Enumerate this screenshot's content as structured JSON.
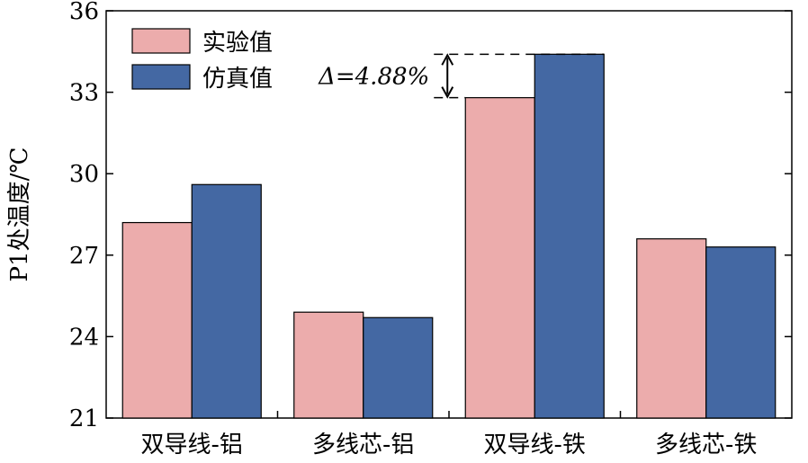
{
  "chart_data": {
    "type": "bar",
    "ylabel": "P1处温度/℃",
    "xlabel": "",
    "categories": [
      "双导线-铝",
      "多线芯-铝",
      "双导线-铁",
      "多线芯-铁"
    ],
    "series": [
      {
        "name": "实验值",
        "values": [
          28.2,
          24.9,
          32.8,
          27.6
        ],
        "color": "#ecacac"
      },
      {
        "name": "仿真值",
        "values": [
          29.6,
          24.7,
          34.4,
          27.3
        ],
        "color": "#4468a3"
      }
    ],
    "ylim": [
      21,
      36
    ],
    "yticks": [
      21,
      24,
      27,
      30,
      33,
      36
    ],
    "legend_position": "top-left",
    "grid": false,
    "annotation": {
      "text": "Δ=4.88%",
      "category": "双导线-铁"
    }
  }
}
